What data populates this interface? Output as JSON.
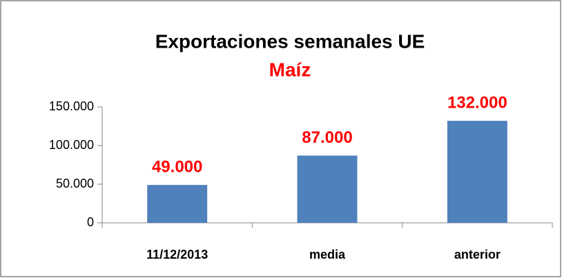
{
  "chart_data": {
    "type": "bar",
    "title": "Exportaciones semanales UE",
    "subtitle": "Maíz",
    "categories": [
      "11/12/2013",
      "media",
      "anterior"
    ],
    "values": [
      49000,
      87000,
      132000
    ],
    "value_labels": [
      "49.000",
      "87.000",
      "132.000"
    ],
    "color": "#4f81bd",
    "label_color": "#ff0000",
    "ylim": [
      0,
      150000
    ],
    "yticks": [
      0,
      {
        "value": 50000,
        "label": "50.000"
      },
      {
        "value": 100000,
        "label": "100.000"
      },
      {
        "value": 150000,
        "label": "150.000"
      }
    ],
    "grid": false
  }
}
